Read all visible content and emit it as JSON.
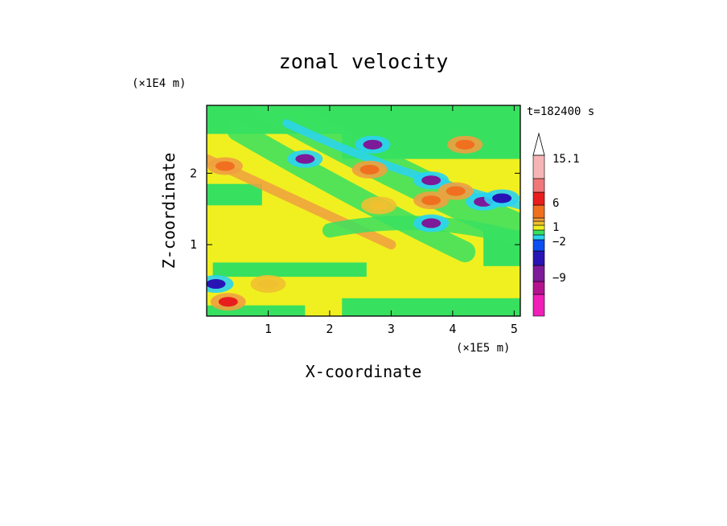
{
  "chart_data": {
    "type": "heatmap",
    "title": "zonal velocity",
    "xlabel": "X-coordinate",
    "ylabel": "Z-coordinate",
    "x_unit": "(×1E5 m)",
    "y_unit": "(×1E4 m)",
    "time_label": "t=182400 s",
    "xlim": [
      0,
      5.1
    ],
    "ylim": [
      0,
      2.95
    ],
    "x_ticks": [
      "1",
      "2",
      "3",
      "4",
      "5"
    ],
    "x_tick_values": [
      1,
      2,
      3,
      4,
      5
    ],
    "y_ticks": [
      "1",
      "2"
    ],
    "y_tick_values": [
      1,
      2
    ],
    "colorbar": {
      "levels": [
        {
          "color": "#ef1fb8",
          "value": -14
        },
        {
          "color": "#b4138f",
          "value": -11
        },
        {
          "color": "#7d1a9a",
          "value": -9
        },
        {
          "color": "#2814b4",
          "value": -5
        },
        {
          "color": "#0a4ff0",
          "value": -3
        },
        {
          "color": "#2ad3f2",
          "value": -2
        },
        {
          "color": "#38e060",
          "value": -1
        },
        {
          "color": "#f0f020",
          "value": 1
        },
        {
          "color": "#f0c030",
          "value": 2
        },
        {
          "color": "#f0a040",
          "value": 3
        },
        {
          "color": "#f07020",
          "value": 6
        },
        {
          "color": "#e81e1e",
          "value": 9
        },
        {
          "color": "#f07878",
          "value": 12
        },
        {
          "color": "#f5b5b5",
          "value": 15.1
        }
      ],
      "labels": [
        "15.1",
        "6",
        "1",
        "−2",
        "−9"
      ],
      "label_values": [
        15.1,
        6,
        1,
        -2,
        -9
      ]
    },
    "features": [
      {
        "x": 3.65,
        "z": 1.3,
        "value": -9
      },
      {
        "x": 1.6,
        "z": 2.2,
        "value": -9
      },
      {
        "x": 2.7,
        "z": 2.4,
        "value": -9
      },
      {
        "x": 3.65,
        "z": 1.9,
        "value": -9
      },
      {
        "x": 4.5,
        "z": 1.6,
        "value": -9
      },
      {
        "x": 4.8,
        "z": 1.65,
        "value": -5
      },
      {
        "x": 0.15,
        "z": 0.45,
        "value": -5
      },
      {
        "x": 3.65,
        "z": 1.62,
        "value": 6
      },
      {
        "x": 0.3,
        "z": 2.1,
        "value": 6
      },
      {
        "x": 2.65,
        "z": 2.05,
        "value": 6
      },
      {
        "x": 4.05,
        "z": 1.75,
        "value": 6
      },
      {
        "x": 4.2,
        "z": 2.4,
        "value": 6
      },
      {
        "x": 2.8,
        "z": 1.55,
        "value": 2
      },
      {
        "x": 1.0,
        "z": 0.45,
        "value": 2
      },
      {
        "x": 0.35,
        "z": 0.2,
        "value": 9
      }
    ]
  }
}
